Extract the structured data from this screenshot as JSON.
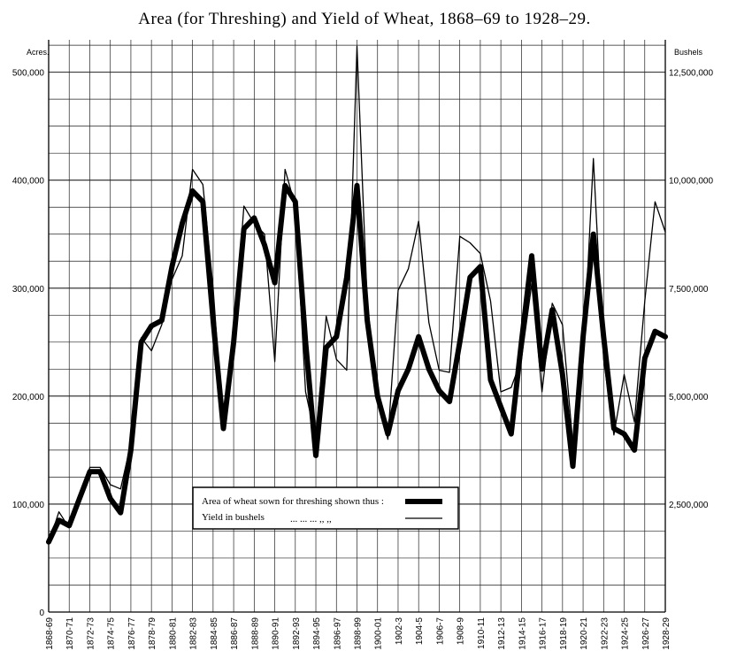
{
  "chart_data": {
    "type": "line",
    "title": "Area (for Threshing) and Yield of Wheat, 1868–69 to 1928–29.",
    "left_axis_label": "Acres.",
    "right_axis_label": "Bushels",
    "left_ylim": [
      0,
      530000
    ],
    "right_ylim": [
      0,
      13250000
    ],
    "left_ticks": [
      {
        "value": 0,
        "label": "0"
      },
      {
        "value": 100000,
        "label": "100,000"
      },
      {
        "value": 200000,
        "label": "200,000"
      },
      {
        "value": 300000,
        "label": "300,000"
      },
      {
        "value": 400000,
        "label": "400,000"
      },
      {
        "value": 500000,
        "label": "500,000"
      }
    ],
    "right_ticks": [
      {
        "value": 2500000,
        "label": "2,500,000"
      },
      {
        "value": 5000000,
        "label": "5,000,000"
      },
      {
        "value": 7500000,
        "label": "7,500,000"
      },
      {
        "value": 10000000,
        "label": "10,000,000"
      },
      {
        "value": 12500000,
        "label": "12,500,000"
      }
    ],
    "x_labels": [
      "1868-69",
      "1870-71",
      "1872-73",
      "1874-75",
      "1876-77",
      "1878-79",
      "1880-81",
      "1882-83",
      "1884-85",
      "1886-87",
      "1888-89",
      "1890-91",
      "1892-93",
      "1894-95",
      "1896-97",
      "1898-99",
      "1900-01",
      "1902-3",
      "1904-5",
      "1906-7",
      "1908-9",
      "1910-11",
      "1912-13",
      "1914-15",
      "1916-17",
      "1918-19",
      "1920-21",
      "1922-23",
      "1924-25",
      "1926-27",
      "1928-29"
    ],
    "grid": true,
    "series": [
      {
        "name": "Area of wheat sown for threshing shown thus:",
        "axis": "left",
        "color": "#000000",
        "stroke": "thick",
        "values": [
          65000,
          85000,
          80000,
          105000,
          130000,
          130000,
          105000,
          92000,
          150000,
          250000,
          265000,
          270000,
          320000,
          360000,
          390000,
          380000,
          270000,
          170000,
          250000,
          355000,
          365000,
          340000,
          305000,
          395000,
          380000,
          250000,
          145000,
          245000,
          255000,
          310000,
          395000,
          270000,
          200000,
          165000,
          205000,
          225000,
          255000,
          225000,
          205000,
          195000,
          250000,
          310000,
          320000,
          215000,
          190000,
          165000,
          250000,
          330000,
          225000,
          280000,
          220000,
          135000,
          255000,
          350000,
          255000,
          170000,
          165000,
          150000,
          235000,
          260000,
          255000
        ]
      },
      {
        "name": "Yield in bushels",
        "axis": "right",
        "color": "#000000",
        "stroke": "thin",
        "values": [
          1600000,
          2320000,
          1950000,
          2500000,
          3350000,
          3350000,
          2950000,
          2850000,
          3900000,
          6350000,
          6050000,
          6650000,
          7700000,
          8250000,
          10250000,
          9900000,
          7500000,
          4200000,
          6250000,
          9400000,
          9000000,
          8750000,
          5800000,
          10250000,
          9400000,
          5100000,
          4000000,
          6850000,
          5850000,
          5600000,
          13100000,
          7150000,
          5100000,
          4000000,
          7450000,
          7950000,
          9050000,
          6700000,
          5600000,
          5550000,
          8700000,
          8550000,
          8300000,
          7200000,
          5100000,
          5200000,
          5850000,
          7600000,
          5100000,
          7150000,
          6650000,
          3900000,
          5800000,
          10500000,
          5850000,
          4100000,
          5500000,
          4400000,
          7200000,
          9500000,
          8800000
        ]
      }
    ],
    "legend": {
      "placement": "bottom-center",
      "area_text": "Area of wheat sown for threshing shown thus :",
      "yield_text": "Yield in bushels",
      "yield_ditto": "... ... ... ,, ,,"
    }
  }
}
